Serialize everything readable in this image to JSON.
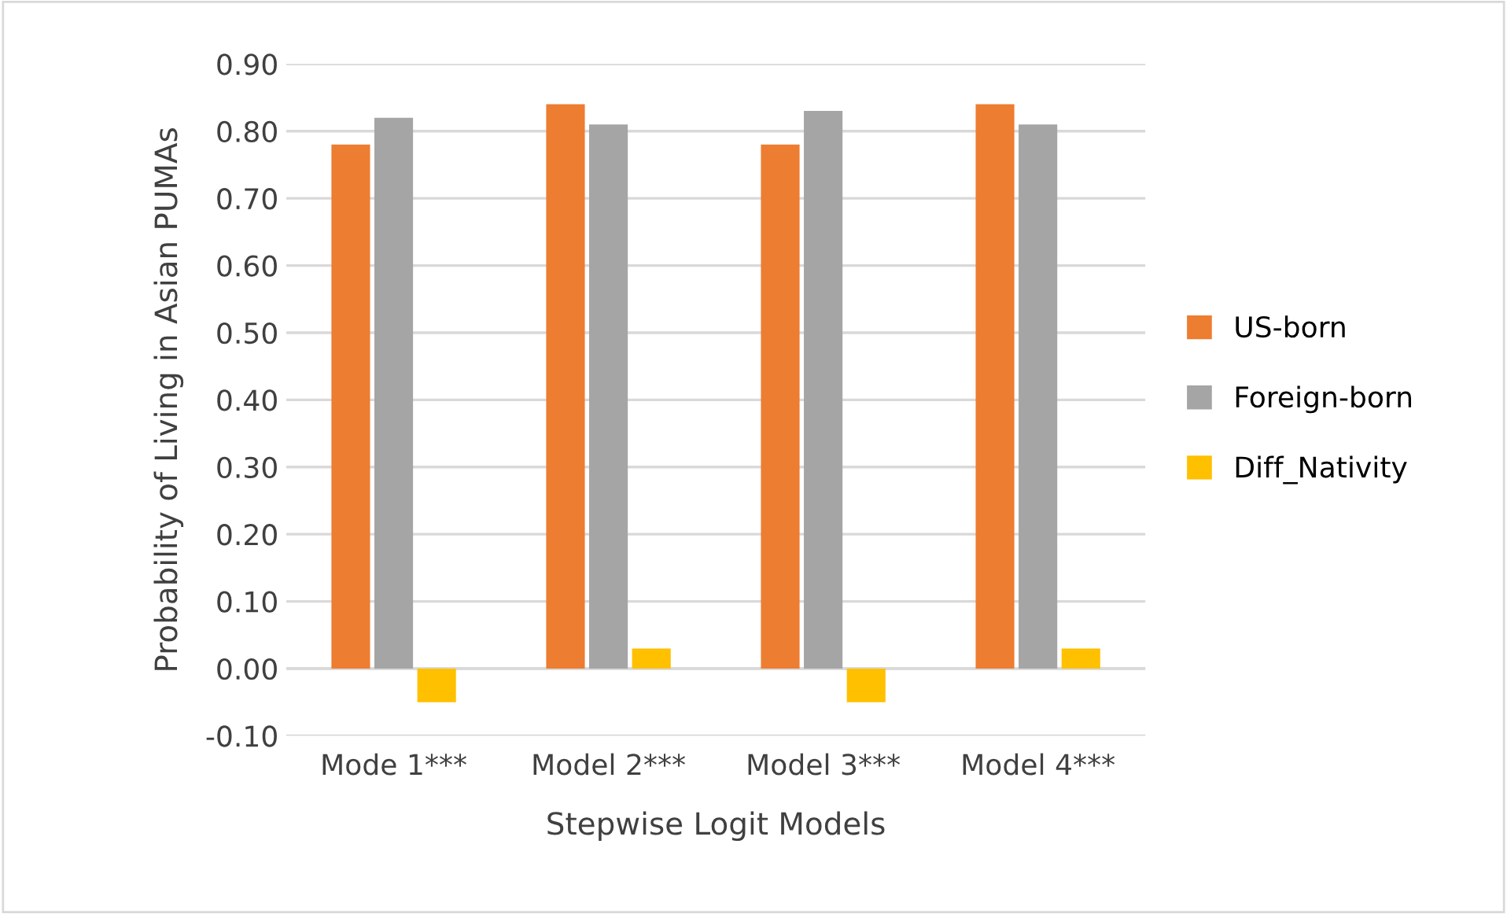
{
  "chart_data": {
    "type": "bar",
    "xlabel": "Stepwise Logit Models",
    "ylabel": "Probability of Living in Asian PUMAs",
    "categories": [
      "Mode 1***",
      "Model 2***",
      "Model 3***",
      "Model 4***"
    ],
    "series": [
      {
        "name": "US-born",
        "color": "#ed7d31",
        "values": [
          0.78,
          0.84,
          0.78,
          0.84
        ]
      },
      {
        "name": "Foreign-born",
        "color": "#a5a5a5",
        "values": [
          0.82,
          0.81,
          0.83,
          0.81
        ]
      },
      {
        "name": "Diff_Nativity",
        "color": "#ffc000",
        "values": [
          -0.05,
          0.03,
          -0.05,
          0.03
        ]
      }
    ],
    "ylim": [
      -0.1,
      0.9
    ],
    "yticks": [
      {
        "value": -0.1,
        "label": "-0.10"
      },
      {
        "value": 0,
        "label": "0.00"
      },
      {
        "value": 0.1,
        "label": "0.10"
      },
      {
        "value": 0.2,
        "label": "0.20"
      },
      {
        "value": 0.3,
        "label": "0.30"
      },
      {
        "value": 0.4,
        "label": "0.40"
      },
      {
        "value": 0.5,
        "label": "0.50"
      },
      {
        "value": 0.6,
        "label": "0.60"
      },
      {
        "value": 0.7,
        "label": "0.70"
      },
      {
        "value": 0.8,
        "label": "0.80"
      },
      {
        "value": 0.9,
        "label": "0.90"
      }
    ],
    "grid": "y",
    "legend": "right"
  }
}
